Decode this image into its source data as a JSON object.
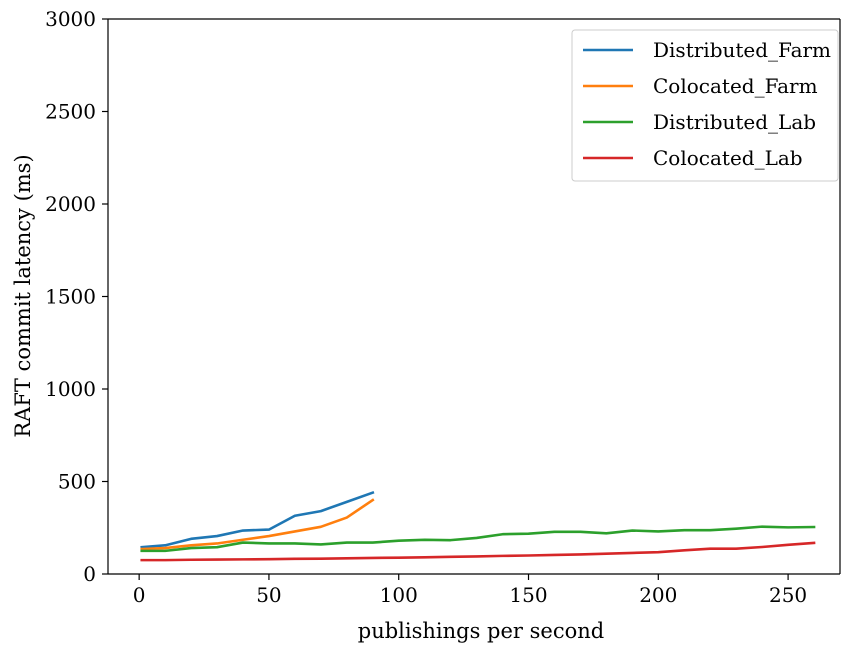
{
  "chart_data": {
    "type": "line",
    "title": "",
    "xlabel": "publishings per second",
    "ylabel": "RAFT commit latency (ms)",
    "xlim": [
      -12,
      270
    ],
    "ylim": [
      0,
      3000
    ],
    "xticks": [
      0,
      50,
      100,
      150,
      200,
      250
    ],
    "yticks": [
      0,
      500,
      1000,
      1500,
      2000,
      2500,
      3000
    ],
    "grid": false,
    "legend_position": "top-right",
    "series": [
      {
        "name": "Distributed_Farm",
        "color": "#1f77b4",
        "x": [
          1,
          10,
          20,
          30,
          40,
          50,
          60,
          70,
          80,
          90
        ],
        "y": [
          145,
          155,
          190,
          205,
          235,
          240,
          315,
          340,
          390,
          440
        ]
      },
      {
        "name": "Colocated_Farm",
        "color": "#ff7f0e",
        "x": [
          1,
          10,
          20,
          30,
          40,
          50,
          60,
          70,
          80,
          90
        ],
        "y": [
          135,
          140,
          155,
          165,
          185,
          205,
          230,
          255,
          305,
          400
        ]
      },
      {
        "name": "Distributed_Lab",
        "color": "#2ca02c",
        "x": [
          1,
          10,
          20,
          30,
          40,
          50,
          60,
          70,
          80,
          90,
          100,
          110,
          120,
          130,
          140,
          150,
          160,
          170,
          180,
          190,
          200,
          210,
          220,
          230,
          240,
          250,
          260
        ],
        "y": [
          125,
          125,
          140,
          145,
          170,
          165,
          165,
          160,
          170,
          170,
          180,
          185,
          183,
          195,
          215,
          218,
          228,
          228,
          220,
          235,
          230,
          237,
          237,
          245,
          256,
          252,
          254
        ]
      },
      {
        "name": "Colocated_Lab",
        "color": "#d62728",
        "x": [
          1,
          10,
          20,
          30,
          40,
          50,
          60,
          70,
          80,
          90,
          100,
          110,
          120,
          130,
          140,
          150,
          160,
          170,
          180,
          190,
          200,
          210,
          220,
          230,
          240,
          250,
          260
        ],
        "y": [
          75,
          75,
          77,
          78,
          79,
          80,
          82,
          83,
          85,
          87,
          88,
          90,
          93,
          95,
          98,
          100,
          103,
          106,
          110,
          114,
          118,
          128,
          137,
          137,
          146,
          158,
          168
        ]
      }
    ]
  }
}
